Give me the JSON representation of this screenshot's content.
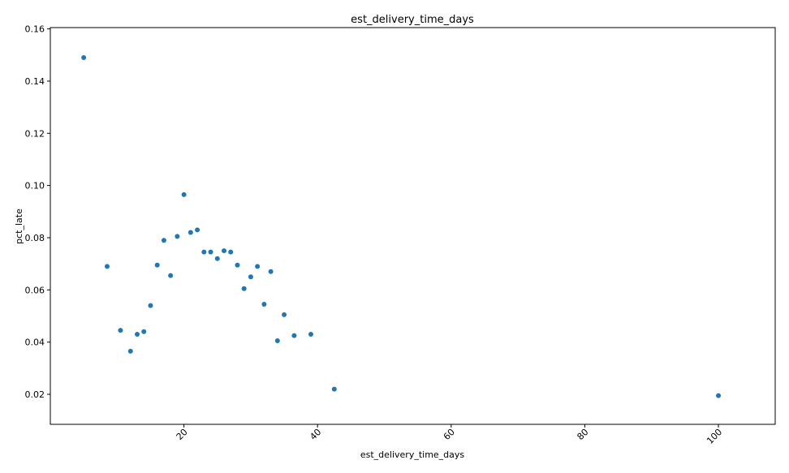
{
  "chart_data": {
    "type": "scatter",
    "title": "est_delivery_time_days",
    "xlabel": "est_delivery_time_days",
    "ylabel": "pct_late",
    "xlim": [
      0.0,
      108.5
    ],
    "ylim": [
      0.0085,
      0.1605
    ],
    "xticks": [
      20,
      40,
      60,
      80,
      100
    ],
    "yticks": [
      0.02,
      0.04,
      0.06,
      0.08,
      0.1,
      0.12,
      0.14,
      0.16
    ],
    "xtick_labels": [
      "20",
      "40",
      "60",
      "80",
      "100"
    ],
    "ytick_labels": [
      "0.02",
      "0.04",
      "0.06",
      "0.08",
      "0.10",
      "0.12",
      "0.14",
      "0.16"
    ],
    "xtick_rotation": 45,
    "grid": false,
    "marker_color": "#1f77b4",
    "points": [
      {
        "x": 5,
        "y": 0.149
      },
      {
        "x": 8.5,
        "y": 0.069
      },
      {
        "x": 10.5,
        "y": 0.0445
      },
      {
        "x": 12,
        "y": 0.0365
      },
      {
        "x": 13,
        "y": 0.043
      },
      {
        "x": 14,
        "y": 0.044
      },
      {
        "x": 15,
        "y": 0.054
      },
      {
        "x": 16,
        "y": 0.0695
      },
      {
        "x": 17,
        "y": 0.079
      },
      {
        "x": 18,
        "y": 0.0655
      },
      {
        "x": 19,
        "y": 0.0805
      },
      {
        "x": 20,
        "y": 0.0965
      },
      {
        "x": 21,
        "y": 0.082
      },
      {
        "x": 22,
        "y": 0.083
      },
      {
        "x": 23,
        "y": 0.0745
      },
      {
        "x": 24,
        "y": 0.0745
      },
      {
        "x": 25,
        "y": 0.072
      },
      {
        "x": 26,
        "y": 0.075
      },
      {
        "x": 27,
        "y": 0.0745
      },
      {
        "x": 28,
        "y": 0.0695
      },
      {
        "x": 29,
        "y": 0.0605
      },
      {
        "x": 30,
        "y": 0.065
      },
      {
        "x": 31,
        "y": 0.069
      },
      {
        "x": 32,
        "y": 0.0545
      },
      {
        "x": 33,
        "y": 0.067
      },
      {
        "x": 34,
        "y": 0.0405
      },
      {
        "x": 35,
        "y": 0.0505
      },
      {
        "x": 36.5,
        "y": 0.0425
      },
      {
        "x": 39,
        "y": 0.043
      },
      {
        "x": 42.5,
        "y": 0.022
      },
      {
        "x": 100,
        "y": 0.0195
      }
    ]
  }
}
